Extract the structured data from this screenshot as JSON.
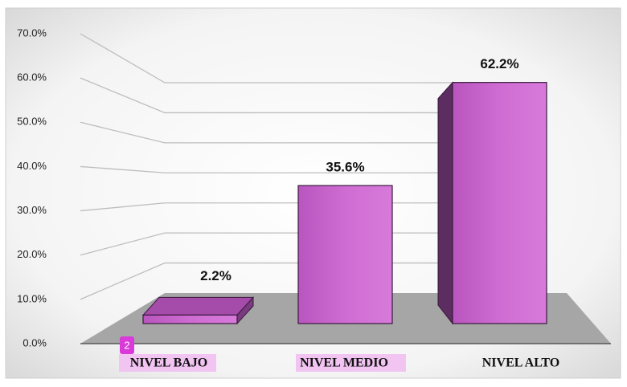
{
  "chart_data": {
    "type": "bar3d",
    "categories": [
      "NIVEL BAJO",
      "NIVEL MEDIO",
      "NIVEL ALTO"
    ],
    "values": [
      2.2,
      35.6,
      62.2
    ],
    "value_labels": [
      "2.2%",
      "35.6%",
      "62.2%"
    ],
    "color": "#c862cc",
    "ylim": [
      0,
      70
    ],
    "yticks": [
      {
        "value": 0,
        "label": "0.0%"
      },
      {
        "value": 10,
        "label": "10.0%"
      },
      {
        "value": 20,
        "label": "20.0%"
      },
      {
        "value": 30,
        "label": "30.0%"
      },
      {
        "value": 40,
        "label": "40.0%"
      },
      {
        "value": 50,
        "label": "50.0%"
      },
      {
        "value": 60,
        "label": "60.0%"
      },
      {
        "value": 70,
        "label": "70.0%"
      }
    ],
    "grid": true,
    "annotations": [
      "2"
    ]
  }
}
